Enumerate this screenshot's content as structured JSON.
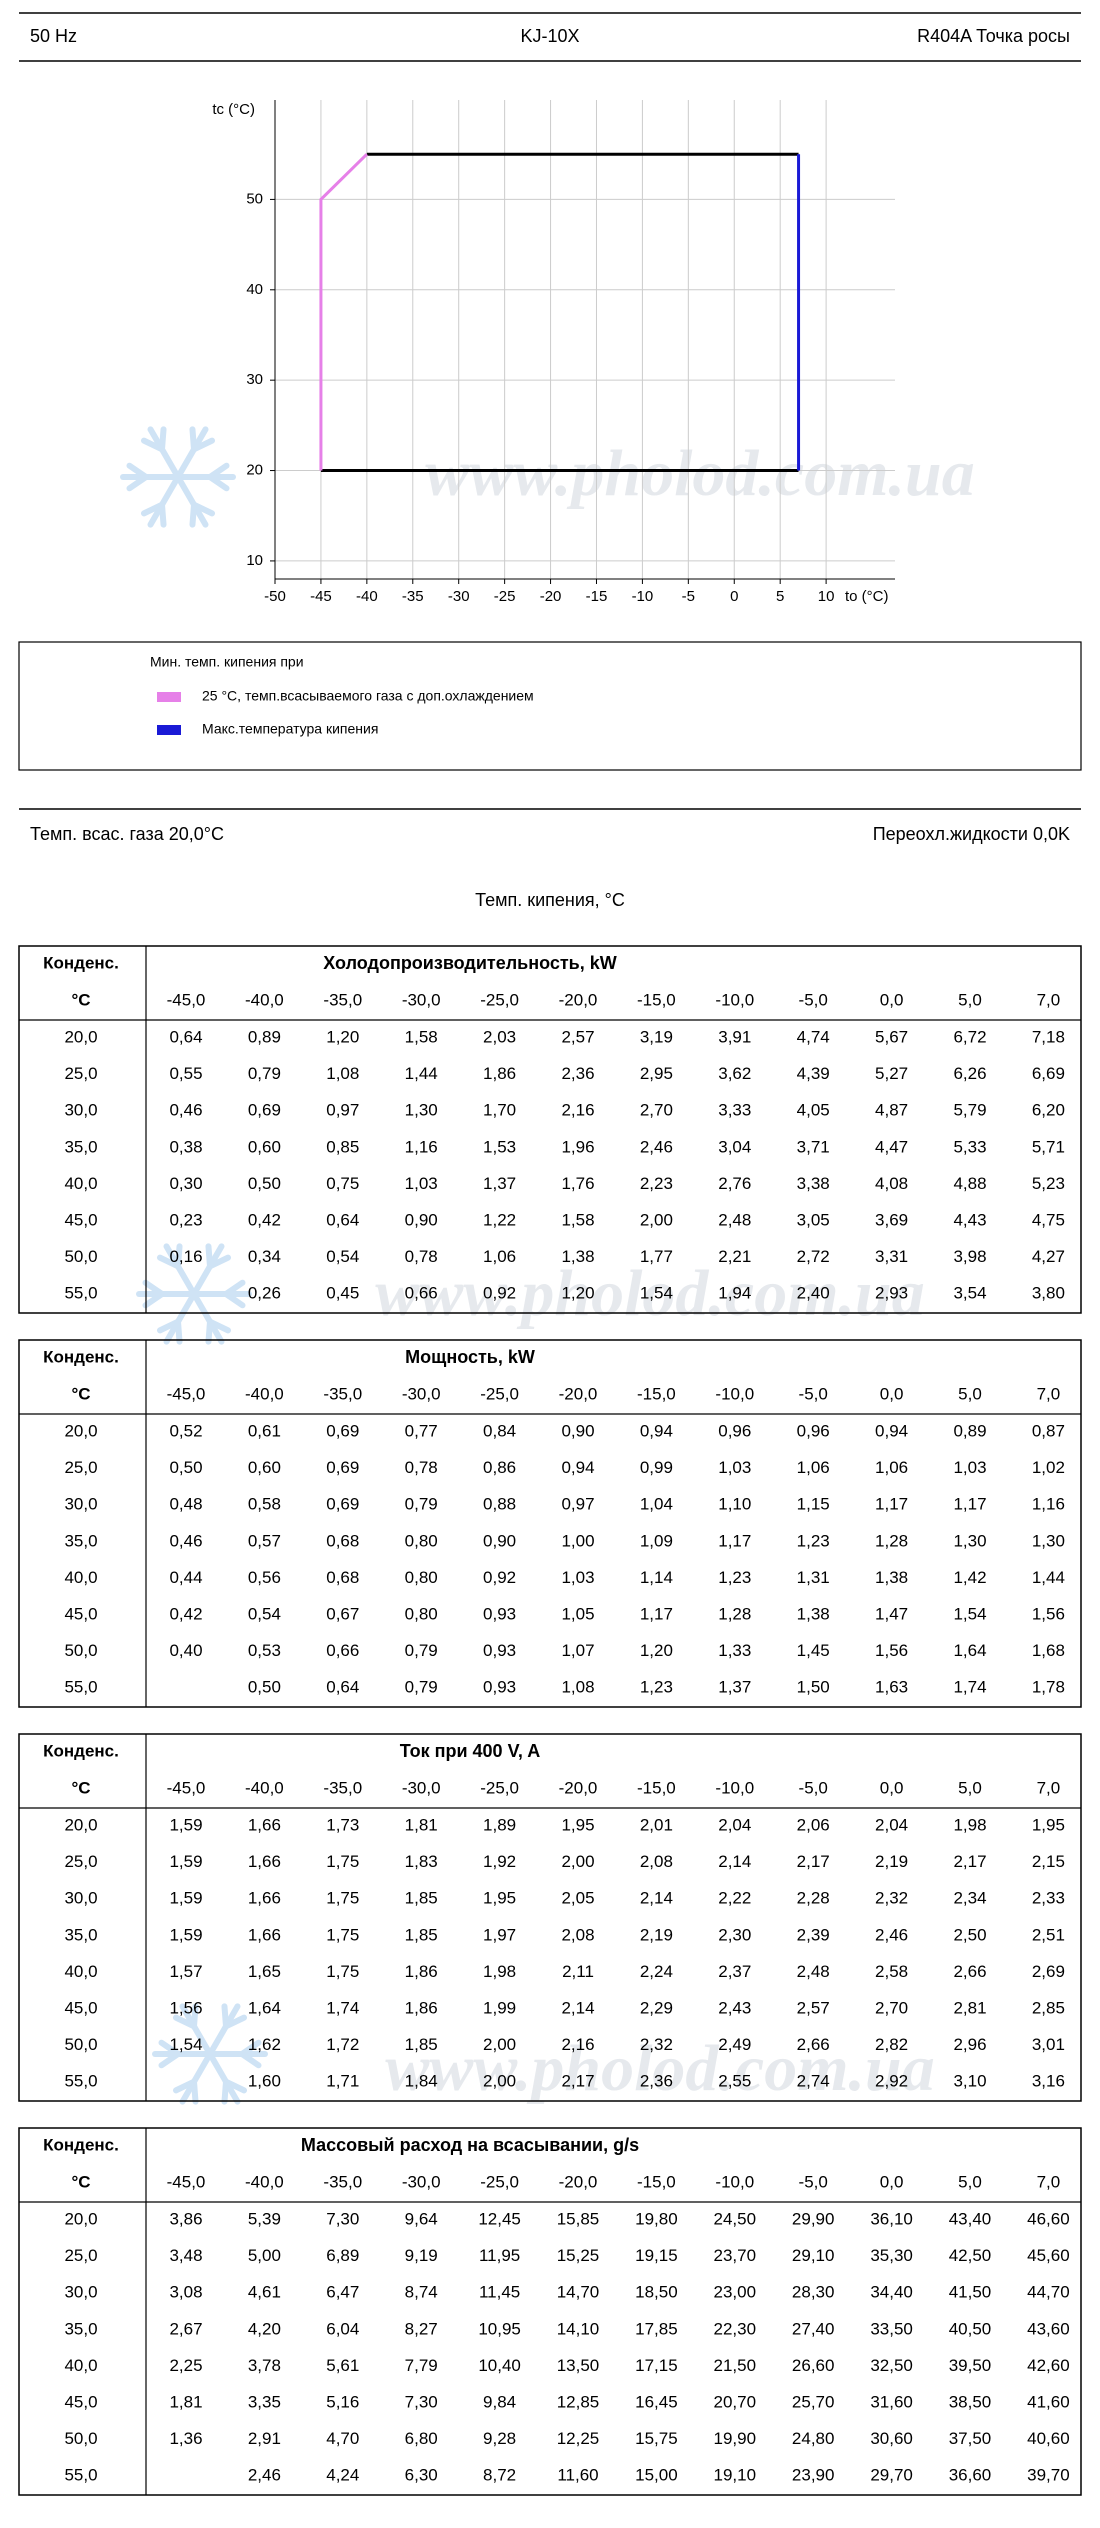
{
  "header": {
    "left": "50 Hz",
    "center": "KJ-10X",
    "right": "R404A Точка росы"
  },
  "chart_data": {
    "type": "line",
    "ylabel": "tc (°C)",
    "xlabel": "to (°C)",
    "legend_title": "Мин. темп. кипения при",
    "xlim": [
      -50,
      17.5
    ],
    "ylim": [
      8,
      61
    ],
    "xticks": [
      -50,
      -45,
      -40,
      -35,
      -30,
      -25,
      -20,
      -15,
      -10,
      -5,
      0,
      5,
      10
    ],
    "yticks": [
      10,
      20,
      30,
      40,
      50
    ],
    "grid": true,
    "series": [
      {
        "name": "25 °C, темп.всасываемого газа с доп.охлаждением",
        "color": "#e680e8",
        "x": [
          -45,
          -45,
          -40
        ],
        "y": [
          20,
          50,
          55
        ]
      },
      {
        "name": "Макс.температура кипения",
        "color": "#1a1ad6",
        "x": [
          7,
          7
        ],
        "y": [
          55,
          20
        ]
      }
    ],
    "boundary": {
      "color": "#000000",
      "x": [
        -40,
        7,
        null,
        7,
        -45
      ],
      "y": [
        55,
        55,
        null,
        20,
        20
      ]
    }
  },
  "conditions": {
    "suction": "Темп. всас. газа 20,0°C",
    "subcooling": "Переохл.жидкости 0,0K",
    "evap": "Темп. кипения, °C"
  },
  "watermark": "www.pholod.com.ua",
  "table_head": {
    "cond": "Конденс.",
    "unit": "°C",
    "columns": [
      "-45,0",
      "-40,0",
      "-35,0",
      "-30,0",
      "-25,0",
      "-20,0",
      "-15,0",
      "-10,0",
      "-5,0",
      "0,0",
      "5,0",
      "7,0"
    ]
  },
  "tables": [
    {
      "title": "Холодопроизводительность, kW",
      "rows": [
        {
          "cond": "20,0",
          "values": [
            "0,64",
            "0,89",
            "1,20",
            "1,58",
            "2,03",
            "2,57",
            "3,19",
            "3,91",
            "4,74",
            "5,67",
            "6,72",
            "7,18"
          ]
        },
        {
          "cond": "25,0",
          "values": [
            "0,55",
            "0,79",
            "1,08",
            "1,44",
            "1,86",
            "2,36",
            "2,95",
            "3,62",
            "4,39",
            "5,27",
            "6,26",
            "6,69"
          ]
        },
        {
          "cond": "30,0",
          "values": [
            "0,46",
            "0,69",
            "0,97",
            "1,30",
            "1,70",
            "2,16",
            "2,70",
            "3,33",
            "4,05",
            "4,87",
            "5,79",
            "6,20"
          ]
        },
        {
          "cond": "35,0",
          "values": [
            "0,38",
            "0,60",
            "0,85",
            "1,16",
            "1,53",
            "1,96",
            "2,46",
            "3,04",
            "3,71",
            "4,47",
            "5,33",
            "5,71"
          ]
        },
        {
          "cond": "40,0",
          "values": [
            "0,30",
            "0,50",
            "0,75",
            "1,03",
            "1,37",
            "1,76",
            "2,23",
            "2,76",
            "3,38",
            "4,08",
            "4,88",
            "5,23"
          ]
        },
        {
          "cond": "45,0",
          "values": [
            "0,23",
            "0,42",
            "0,64",
            "0,90",
            "1,22",
            "1,58",
            "2,00",
            "2,48",
            "3,05",
            "3,69",
            "4,43",
            "4,75"
          ]
        },
        {
          "cond": "50,0",
          "values": [
            "0,16",
            "0,34",
            "0,54",
            "0,78",
            "1,06",
            "1,38",
            "1,77",
            "2,21",
            "2,72",
            "3,31",
            "3,98",
            "4,27"
          ]
        },
        {
          "cond": "55,0",
          "values": [
            null,
            "0,26",
            "0,45",
            "0,66",
            "0,92",
            "1,20",
            "1,54",
            "1,94",
            "2,40",
            "2,93",
            "3,54",
            "3,80"
          ]
        }
      ]
    },
    {
      "title": "Мощность, kW",
      "rows": [
        {
          "cond": "20,0",
          "values": [
            "0,52",
            "0,61",
            "0,69",
            "0,77",
            "0,84",
            "0,90",
            "0,94",
            "0,96",
            "0,96",
            "0,94",
            "0,89",
            "0,87"
          ]
        },
        {
          "cond": "25,0",
          "values": [
            "0,50",
            "0,60",
            "0,69",
            "0,78",
            "0,86",
            "0,94",
            "0,99",
            "1,03",
            "1,06",
            "1,06",
            "1,03",
            "1,02"
          ]
        },
        {
          "cond": "30,0",
          "values": [
            "0,48",
            "0,58",
            "0,69",
            "0,79",
            "0,88",
            "0,97",
            "1,04",
            "1,10",
            "1,15",
            "1,17",
            "1,17",
            "1,16"
          ]
        },
        {
          "cond": "35,0",
          "values": [
            "0,46",
            "0,57",
            "0,68",
            "0,80",
            "0,90",
            "1,00",
            "1,09",
            "1,17",
            "1,23",
            "1,28",
            "1,30",
            "1,30"
          ]
        },
        {
          "cond": "40,0",
          "values": [
            "0,44",
            "0,56",
            "0,68",
            "0,80",
            "0,92",
            "1,03",
            "1,14",
            "1,23",
            "1,31",
            "1,38",
            "1,42",
            "1,44"
          ]
        },
        {
          "cond": "45,0",
          "values": [
            "0,42",
            "0,54",
            "0,67",
            "0,80",
            "0,93",
            "1,05",
            "1,17",
            "1,28",
            "1,38",
            "1,47",
            "1,54",
            "1,56"
          ]
        },
        {
          "cond": "50,0",
          "values": [
            "0,40",
            "0,53",
            "0,66",
            "0,79",
            "0,93",
            "1,07",
            "1,20",
            "1,33",
            "1,45",
            "1,56",
            "1,64",
            "1,68"
          ]
        },
        {
          "cond": "55,0",
          "values": [
            null,
            "0,50",
            "0,64",
            "0,79",
            "0,93",
            "1,08",
            "1,23",
            "1,37",
            "1,50",
            "1,63",
            "1,74",
            "1,78"
          ]
        }
      ]
    },
    {
      "title": "Ток при 400 V, A",
      "rows": [
        {
          "cond": "20,0",
          "values": [
            "1,59",
            "1,66",
            "1,73",
            "1,81",
            "1,89",
            "1,95",
            "2,01",
            "2,04",
            "2,06",
            "2,04",
            "1,98",
            "1,95"
          ]
        },
        {
          "cond": "25,0",
          "values": [
            "1,59",
            "1,66",
            "1,75",
            "1,83",
            "1,92",
            "2,00",
            "2,08",
            "2,14",
            "2,17",
            "2,19",
            "2,17",
            "2,15"
          ]
        },
        {
          "cond": "30,0",
          "values": [
            "1,59",
            "1,66",
            "1,75",
            "1,85",
            "1,95",
            "2,05",
            "2,14",
            "2,22",
            "2,28",
            "2,32",
            "2,34",
            "2,33"
          ]
        },
        {
          "cond": "35,0",
          "values": [
            "1,59",
            "1,66",
            "1,75",
            "1,85",
            "1,97",
            "2,08",
            "2,19",
            "2,30",
            "2,39",
            "2,46",
            "2,50",
            "2,51"
          ]
        },
        {
          "cond": "40,0",
          "values": [
            "1,57",
            "1,65",
            "1,75",
            "1,86",
            "1,98",
            "2,11",
            "2,24",
            "2,37",
            "2,48",
            "2,58",
            "2,66",
            "2,69"
          ]
        },
        {
          "cond": "45,0",
          "values": [
            "1,56",
            "1,64",
            "1,74",
            "1,86",
            "1,99",
            "2,14",
            "2,29",
            "2,43",
            "2,57",
            "2,70",
            "2,81",
            "2,85"
          ]
        },
        {
          "cond": "50,0",
          "values": [
            "1,54",
            "1,62",
            "1,72",
            "1,85",
            "2,00",
            "2,16",
            "2,32",
            "2,49",
            "2,66",
            "2,82",
            "2,96",
            "3,01"
          ]
        },
        {
          "cond": "55,0",
          "values": [
            null,
            "1,60",
            "1,71",
            "1,84",
            "2,00",
            "2,17",
            "2,36",
            "2,55",
            "2,74",
            "2,92",
            "3,10",
            "3,16"
          ]
        }
      ]
    },
    {
      "title": "Массовый расход на всасывании, g/s",
      "rows": [
        {
          "cond": "20,0",
          "values": [
            "3,86",
            "5,39",
            "7,30",
            "9,64",
            "12,45",
            "15,85",
            "19,80",
            "24,50",
            "29,90",
            "36,10",
            "43,40",
            "46,60"
          ]
        },
        {
          "cond": "25,0",
          "values": [
            "3,48",
            "5,00",
            "6,89",
            "9,19",
            "11,95",
            "15,25",
            "19,15",
            "23,70",
            "29,10",
            "35,30",
            "42,50",
            "45,60"
          ]
        },
        {
          "cond": "30,0",
          "values": [
            "3,08",
            "4,61",
            "6,47",
            "8,74",
            "11,45",
            "14,70",
            "18,50",
            "23,00",
            "28,30",
            "34,40",
            "41,50",
            "44,70"
          ]
        },
        {
          "cond": "35,0",
          "values": [
            "2,67",
            "4,20",
            "6,04",
            "8,27",
            "10,95",
            "14,10",
            "17,85",
            "22,30",
            "27,40",
            "33,50",
            "40,50",
            "43,60"
          ]
        },
        {
          "cond": "40,0",
          "values": [
            "2,25",
            "3,78",
            "5,61",
            "7,79",
            "10,40",
            "13,50",
            "17,15",
            "21,50",
            "26,60",
            "32,50",
            "39,50",
            "42,60"
          ]
        },
        {
          "cond": "45,0",
          "values": [
            "1,81",
            "3,35",
            "5,16",
            "7,30",
            "9,84",
            "12,85",
            "16,45",
            "20,70",
            "25,70",
            "31,60",
            "38,50",
            "41,60"
          ]
        },
        {
          "cond": "50,0",
          "values": [
            "1,36",
            "2,91",
            "4,70",
            "6,80",
            "9,28",
            "12,25",
            "15,75",
            "19,90",
            "24,80",
            "30,60",
            "37,50",
            "40,60"
          ]
        },
        {
          "cond": "55,0",
          "values": [
            null,
            "2,46",
            "4,24",
            "6,30",
            "8,72",
            "11,60",
            "15,00",
            "19,10",
            "23,90",
            "29,70",
            "36,60",
            "39,70"
          ]
        }
      ]
    }
  ]
}
